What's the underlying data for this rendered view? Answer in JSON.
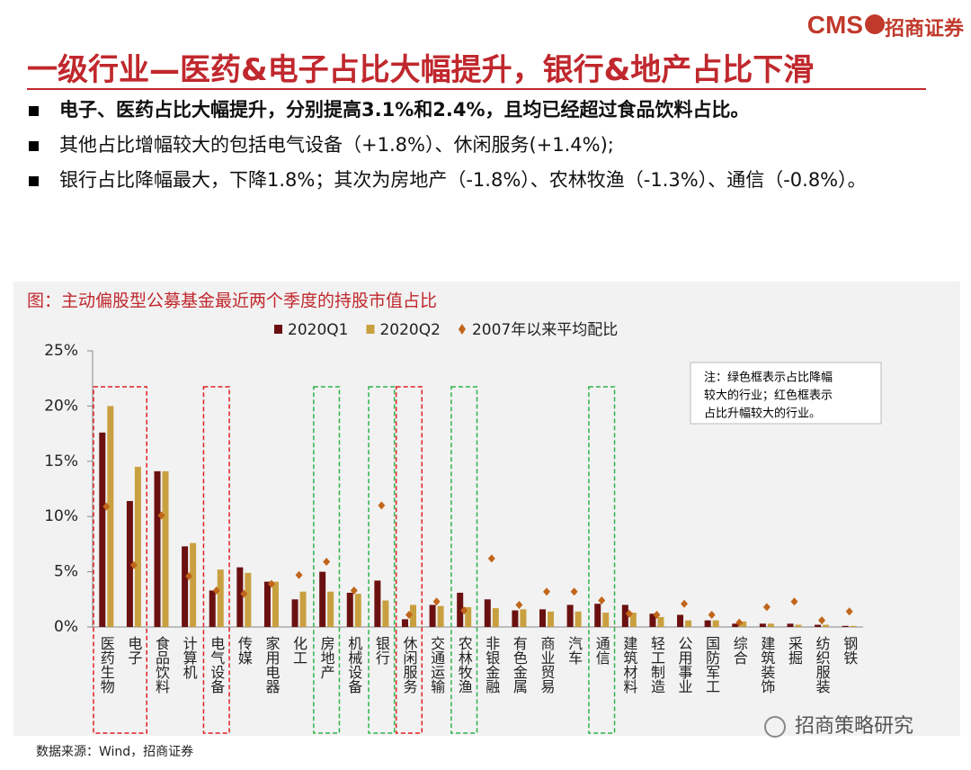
{
  "header": {
    "logo": {
      "brand": "CMS",
      "name": "招商证券"
    },
    "title": "一级行业—医药&电子占比大幅提升，银行&地产占比下滑"
  },
  "bullets": [
    "电子、医药占比大幅提升，分别提高3.1%和2.4%，且均已经超过食品饮料占比。",
    "其他占比增幅较大的包括电气设备（+1.8%）、休闲服务(+1.4%);",
    "银行占比降幅最大，下降1.8%；其次为房地产（-1.8%）、农林牧渔（-1.3%）、通信（-0.8%）。"
  ],
  "chart_data": {
    "type": "bar",
    "title": "图：主动偏股型公募基金最近两个季度的持股市值占比",
    "categories": [
      "医药生物",
      "电子",
      "食品饮料",
      "计算机",
      "电气设备",
      "传媒",
      "家用电器",
      "化工",
      "房地产",
      "机械设备",
      "银行",
      "休闲服务",
      "交通运输",
      "农林牧渔",
      "非银金融",
      "有色金属",
      "商业贸易",
      "汽车",
      "通信",
      "建筑材料",
      "轻工制造",
      "公用事业",
      "国防军工",
      "综合",
      "建筑装饰",
      "采掘",
      "纺织服装",
      "钢铁"
    ],
    "series": [
      {
        "name": "2020Q1",
        "type": "bar",
        "color": "#6b1010",
        "values": [
          17.6,
          11.4,
          14.1,
          7.3,
          3.3,
          5.4,
          4.1,
          2.5,
          5.0,
          3.1,
          4.2,
          0.7,
          2.0,
          3.1,
          2.5,
          1.5,
          1.6,
          2.0,
          2.1,
          2.0,
          1.2,
          1.1,
          0.6,
          0.3,
          0.3,
          0.3,
          0.2,
          0.1
        ]
      },
      {
        "name": "2020Q2",
        "type": "bar",
        "color": "#c9a040",
        "values": [
          20.0,
          14.5,
          14.1,
          7.6,
          5.2,
          4.9,
          4.1,
          3.2,
          3.2,
          3.0,
          2.4,
          2.0,
          1.9,
          1.8,
          1.7,
          1.6,
          1.4,
          1.4,
          1.3,
          1.3,
          0.9,
          0.6,
          0.6,
          0.5,
          0.3,
          0.2,
          0.2,
          0.1
        ]
      },
      {
        "name": "2007年以来平均配比",
        "type": "scatter",
        "color": "#c0651a",
        "values": [
          10.9,
          5.6,
          10.1,
          4.6,
          3.3,
          3.0,
          3.9,
          4.7,
          5.9,
          3.3,
          11.0,
          1.1,
          2.3,
          1.5,
          6.2,
          2.0,
          3.2,
          3.2,
          2.4,
          1.2,
          1.1,
          2.1,
          1.1,
          0.4,
          1.8,
          2.3,
          0.6,
          1.4
        ]
      }
    ],
    "ylim": [
      0,
      25
    ],
    "yticks": [
      {
        "value": 0,
        "label": "0%"
      },
      {
        "value": 5,
        "label": "5%"
      },
      {
        "value": 10,
        "label": "10%"
      },
      {
        "value": 15,
        "label": "15%"
      },
      {
        "value": 20,
        "label": "20%"
      },
      {
        "value": 25,
        "label": "25%"
      }
    ],
    "note": [
      "注：绿色框表示占比降幅",
      "较大的行业；红色框表示",
      "占比升幅较大的行业。"
    ]
  },
  "source": "数据来源：Wind，招商证券",
  "watermark": "招商策略研究"
}
